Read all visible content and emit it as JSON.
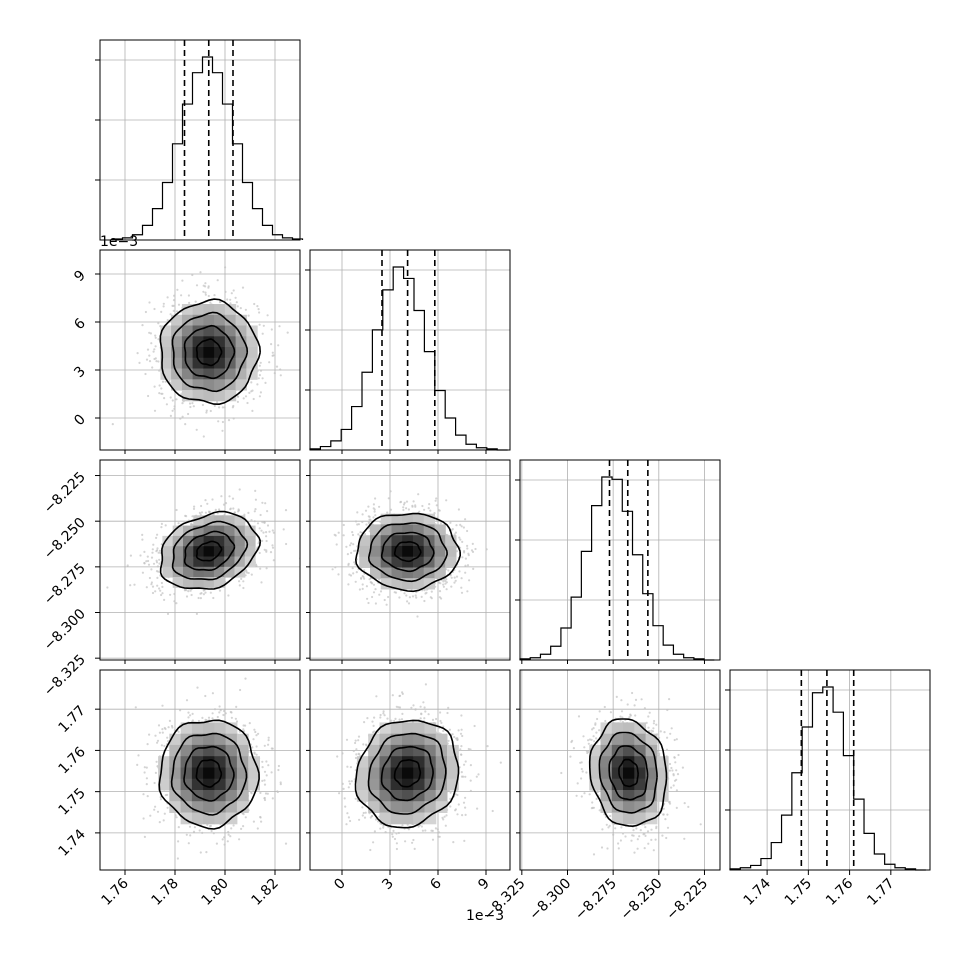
{
  "colors": {
    "background": "#ffffff",
    "ink": "#000000",
    "grid": "#b0b0b0",
    "scatter": "#c2c2c2"
  },
  "params": [
    {
      "key": "p0",
      "center": 1.7935,
      "sigma": 0.0098,
      "q16": 1.7838,
      "q50": 1.7935,
      "q84": 1.8032,
      "range": [
        1.75,
        1.83
      ],
      "ticks": [
        1.76,
        1.78,
        1.8,
        1.82
      ],
      "tick_labels": [
        "1.76",
        "1.78",
        "1.80",
        "1.82"
      ],
      "offset_text": ""
    },
    {
      "key": "p1",
      "center": 4.1,
      "sigma": 1.6,
      "q16": 2.5,
      "q50": 4.1,
      "q84": 5.8,
      "range": [
        -2.0,
        10.5
      ],
      "ticks": [
        0,
        3,
        6,
        9
      ],
      "tick_labels": [
        "0",
        "3",
        "6",
        "9"
      ],
      "offset_text": "1e−3"
    },
    {
      "key": "p2",
      "center": -8.2665,
      "sigma": 0.0105,
      "q16": -8.277,
      "q50": -8.267,
      "q84": -8.256,
      "range": [
        -8.326,
        -8.2165
      ],
      "ticks": [
        -8.325,
        -8.3,
        -8.275,
        -8.25,
        -8.225
      ],
      "tick_labels": [
        "−8.325",
        "−8.300",
        "−8.275",
        "−8.250",
        "−8.225"
      ],
      "offset_text": ""
    },
    {
      "key": "p3",
      "center": 1.7545,
      "sigma": 0.0065,
      "q16": 1.7483,
      "q50": 1.7545,
      "q84": 1.761,
      "range": [
        1.731,
        1.7795
      ],
      "ticks": [
        1.74,
        1.75,
        1.76,
        1.77
      ],
      "tick_labels": [
        "1.74",
        "1.75",
        "1.76",
        "1.77"
      ],
      "offset_text": ""
    }
  ],
  "chart_data": {
    "type": "corner",
    "n_params": 4,
    "quantiles": [
      0.16,
      0.5,
      0.84
    ],
    "grid": true,
    "histograms": [
      {
        "param": 0,
        "bin_edges": [
          1.755,
          1.759,
          1.763,
          1.767,
          1.771,
          1.775,
          1.779,
          1.783,
          1.787,
          1.791,
          1.795,
          1.799,
          1.803,
          1.807,
          1.811,
          1.815,
          1.819,
          1.823,
          1.827,
          1.831
        ],
        "counts": [
          1,
          2,
          5,
          14,
          30,
          55,
          92,
          130,
          160,
          175,
          160,
          130,
          92,
          55,
          30,
          14,
          5,
          2,
          1
        ]
      },
      {
        "param": 1,
        "bin_edges": [
          -2.0,
          -1.35,
          -0.7,
          -0.05,
          0.6,
          1.25,
          1.9,
          2.55,
          3.2,
          3.85,
          4.5,
          5.15,
          5.8,
          6.45,
          7.1,
          7.75,
          8.4,
          9.05,
          9.7,
          10.35
        ],
        "counts": [
          1,
          3,
          8,
          18,
          38,
          68,
          105,
          140,
          160,
          150,
          122,
          86,
          52,
          28,
          13,
          5,
          2,
          1,
          0
        ]
      },
      {
        "param": 2,
        "bin_edges": [
          -8.326,
          -8.3204,
          -8.3148,
          -8.3092,
          -8.3036,
          -8.298,
          -8.2924,
          -8.2868,
          -8.2812,
          -8.2756,
          -8.27,
          -8.2644,
          -8.2588,
          -8.2532,
          -8.2476,
          -8.242,
          -8.2364,
          -8.2308,
          -8.2252,
          -8.2196
        ],
        "counts": [
          1,
          2,
          5,
          12,
          28,
          55,
          95,
          135,
          160,
          158,
          130,
          92,
          58,
          30,
          13,
          5,
          2,
          1,
          0
        ]
      },
      {
        "param": 3,
        "bin_edges": [
          1.731,
          1.7335,
          1.736,
          1.7385,
          1.741,
          1.7435,
          1.746,
          1.7485,
          1.751,
          1.7535,
          1.756,
          1.7585,
          1.761,
          1.7635,
          1.766,
          1.7685,
          1.771,
          1.7735,
          1.776,
          1.7785
        ],
        "counts": [
          1,
          2,
          4,
          10,
          24,
          48,
          85,
          125,
          155,
          160,
          138,
          100,
          62,
          32,
          14,
          5,
          2,
          1,
          0
        ]
      }
    ],
    "contour_levels_sigma": [
      0.5,
      1.0,
      1.5,
      2.0
    ],
    "correlations": {
      "1-0": 0.0,
      "2-0": 0.25,
      "2-1": 0.0,
      "3-0": 0.0,
      "3-1": 0.1,
      "3-2": -0.1
    }
  }
}
